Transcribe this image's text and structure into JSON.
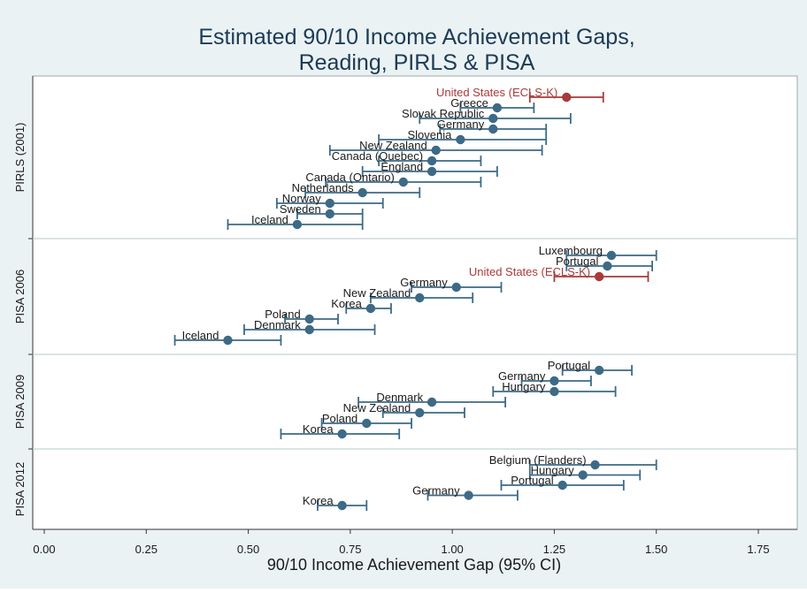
{
  "chart_data": {
    "type": "scatter",
    "subtype": "dot-with-confidence-intervals",
    "title_lines": [
      "Estimated 90/10 Income Achievement Gaps,",
      "Reading, PIRLS & PISA"
    ],
    "xlabel": "90/10 Income Achievement Gap (95% CI)",
    "ylabel": "",
    "xlim": [
      0,
      1.75
    ],
    "xticks": [
      0,
      0.25,
      0.5,
      0.75,
      1.0,
      1.25,
      1.5,
      1.75
    ],
    "xtick_labels": [
      "0.00",
      "0.25",
      "0.50",
      "0.75",
      "1.00",
      "1.25",
      "1.50",
      "1.75"
    ],
    "grid": false,
    "colors": {
      "default": "#3d6a86",
      "highlight": "#a83a3a",
      "text": "#1a1a1a",
      "title": "#1d3a55",
      "outer_bg": "#eaf2f3",
      "plot_bg": "#ffffff",
      "divider": "#c8d4d8"
    },
    "panels": [
      {
        "name": "PIRLS (2001)",
        "rows": [
          {
            "label": "United States (ECLS-K)",
            "estimate": 1.28,
            "lower": 1.19,
            "upper": 1.37,
            "highlight": true
          },
          {
            "label": "Greece",
            "estimate": 1.11,
            "lower": 1.02,
            "upper": 1.2
          },
          {
            "label": "Slovak Republic",
            "estimate": 1.1,
            "lower": 0.92,
            "upper": 1.29
          },
          {
            "label": "Germany",
            "estimate": 1.1,
            "lower": 0.97,
            "upper": 1.23
          },
          {
            "label": "Slovenia",
            "estimate": 1.02,
            "lower": 0.82,
            "upper": 1.23
          },
          {
            "label": "New Zealand",
            "estimate": 0.96,
            "lower": 0.7,
            "upper": 1.22
          },
          {
            "label": "Canada (Quebec)",
            "estimate": 0.95,
            "lower": 0.82,
            "upper": 1.07
          },
          {
            "label": "England",
            "estimate": 0.95,
            "lower": 0.78,
            "upper": 1.11
          },
          {
            "label": "Canada (Ontario)",
            "estimate": 0.88,
            "lower": 0.69,
            "upper": 1.07
          },
          {
            "label": "Netherlands",
            "estimate": 0.78,
            "lower": 0.64,
            "upper": 0.92
          },
          {
            "label": "Norway",
            "estimate": 0.7,
            "lower": 0.57,
            "upper": 0.83
          },
          {
            "label": "Sweden",
            "estimate": 0.7,
            "lower": 0.62,
            "upper": 0.78
          },
          {
            "label": "Iceland",
            "estimate": 0.62,
            "lower": 0.45,
            "upper": 0.78
          }
        ]
      },
      {
        "name": "PISA 2006",
        "rows": [
          {
            "label": "Luxembourg",
            "estimate": 1.39,
            "lower": 1.28,
            "upper": 1.5
          },
          {
            "label": "Portugal",
            "estimate": 1.38,
            "lower": 1.28,
            "upper": 1.49
          },
          {
            "label": "United States (ECLS-K)",
            "estimate": 1.36,
            "lower": 1.25,
            "upper": 1.48,
            "highlight": true
          },
          {
            "label": "Germany",
            "estimate": 1.01,
            "lower": 0.9,
            "upper": 1.12
          },
          {
            "label": "New Zealand",
            "estimate": 0.92,
            "lower": 0.8,
            "upper": 1.05
          },
          {
            "label": "Korea",
            "estimate": 0.8,
            "lower": 0.74,
            "upper": 0.85
          },
          {
            "label": "Poland",
            "estimate": 0.65,
            "lower": 0.59,
            "upper": 0.72
          },
          {
            "label": "Denmark",
            "estimate": 0.65,
            "lower": 0.49,
            "upper": 0.81
          },
          {
            "label": "Iceland",
            "estimate": 0.45,
            "lower": 0.32,
            "upper": 0.58
          }
        ]
      },
      {
        "name": "PISA 2009",
        "rows": [
          {
            "label": "Portugal",
            "estimate": 1.36,
            "lower": 1.27,
            "upper": 1.44
          },
          {
            "label": "Germany",
            "estimate": 1.25,
            "lower": 1.17,
            "upper": 1.34
          },
          {
            "label": "Hungary",
            "estimate": 1.25,
            "lower": 1.1,
            "upper": 1.4
          },
          {
            "label": "Denmark",
            "estimate": 0.95,
            "lower": 0.77,
            "upper": 1.13
          },
          {
            "label": "New Zealand",
            "estimate": 0.92,
            "lower": 0.83,
            "upper": 1.03
          },
          {
            "label": "Poland",
            "estimate": 0.79,
            "lower": 0.68,
            "upper": 0.9
          },
          {
            "label": "Korea",
            "estimate": 0.73,
            "lower": 0.58,
            "upper": 0.87
          }
        ]
      },
      {
        "name": "PISA 2012",
        "rows": [
          {
            "label": "Belgium (Flanders)",
            "estimate": 1.35,
            "lower": 1.19,
            "upper": 1.5
          },
          {
            "label": "Hungary",
            "estimate": 1.32,
            "lower": 1.19,
            "upper": 1.46
          },
          {
            "label": "Portugal",
            "estimate": 1.27,
            "lower": 1.12,
            "upper": 1.42
          },
          {
            "label": "Germany",
            "estimate": 1.04,
            "lower": 0.94,
            "upper": 1.16
          },
          {
            "label": "Korea",
            "estimate": 0.73,
            "lower": 0.67,
            "upper": 0.79
          }
        ]
      }
    ]
  }
}
